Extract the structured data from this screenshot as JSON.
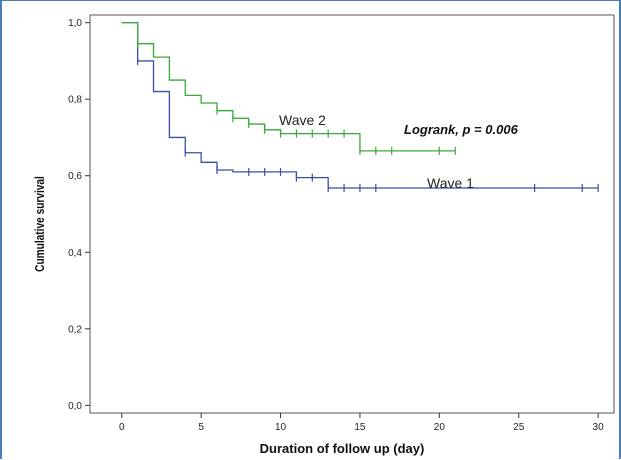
{
  "chart_data": {
    "type": "line",
    "subtype": "kaplan-meier",
    "title": "",
    "xlabel": "Duration of follow up (day)",
    "ylabel": "Cumulative survival",
    "xlim": [
      -2,
      31
    ],
    "ylim": [
      -0.02,
      1.02
    ],
    "xticks": [
      0,
      5,
      10,
      15,
      20,
      25,
      30
    ],
    "xtick_labels": [
      "0",
      "5",
      "10",
      "15",
      "20",
      "25",
      "30"
    ],
    "yticks": [
      0.0,
      0.2,
      0.4,
      0.6,
      0.8,
      1.0
    ],
    "ytick_labels": [
      "0,0",
      "0,2",
      "0,4",
      "0,6",
      "0,8",
      "1,0"
    ],
    "grid": false,
    "annotation": "Logrank, p = 0.006",
    "series": [
      {
        "name": "Wave 1",
        "color": "#3b4ea8",
        "steps": [
          [
            0,
            1.0
          ],
          [
            1,
            0.9
          ],
          [
            2,
            0.82
          ],
          [
            3,
            0.7
          ],
          [
            4,
            0.66
          ],
          [
            5,
            0.635
          ],
          [
            6,
            0.615
          ],
          [
            7,
            0.61
          ],
          [
            11,
            0.595
          ],
          [
            13,
            0.568
          ],
          [
            30,
            0.568
          ]
        ],
        "censored": [
          1,
          4,
          6,
          8,
          9,
          10,
          11,
          12,
          13,
          14,
          15,
          16,
          26,
          29,
          30
        ]
      },
      {
        "name": "Wave 2",
        "color": "#3aa83a",
        "steps": [
          [
            0,
            1.0
          ],
          [
            1,
            0.945
          ],
          [
            2,
            0.91
          ],
          [
            3,
            0.85
          ],
          [
            4,
            0.81
          ],
          [
            5,
            0.79
          ],
          [
            6,
            0.77
          ],
          [
            7,
            0.75
          ],
          [
            8,
            0.735
          ],
          [
            9,
            0.72
          ],
          [
            10,
            0.71
          ],
          [
            15,
            0.665
          ],
          [
            21,
            0.665
          ]
        ],
        "censored": [
          1,
          6,
          7,
          8,
          9,
          10,
          11,
          12,
          13,
          14,
          15,
          16,
          17,
          20,
          21
        ]
      }
    ]
  }
}
